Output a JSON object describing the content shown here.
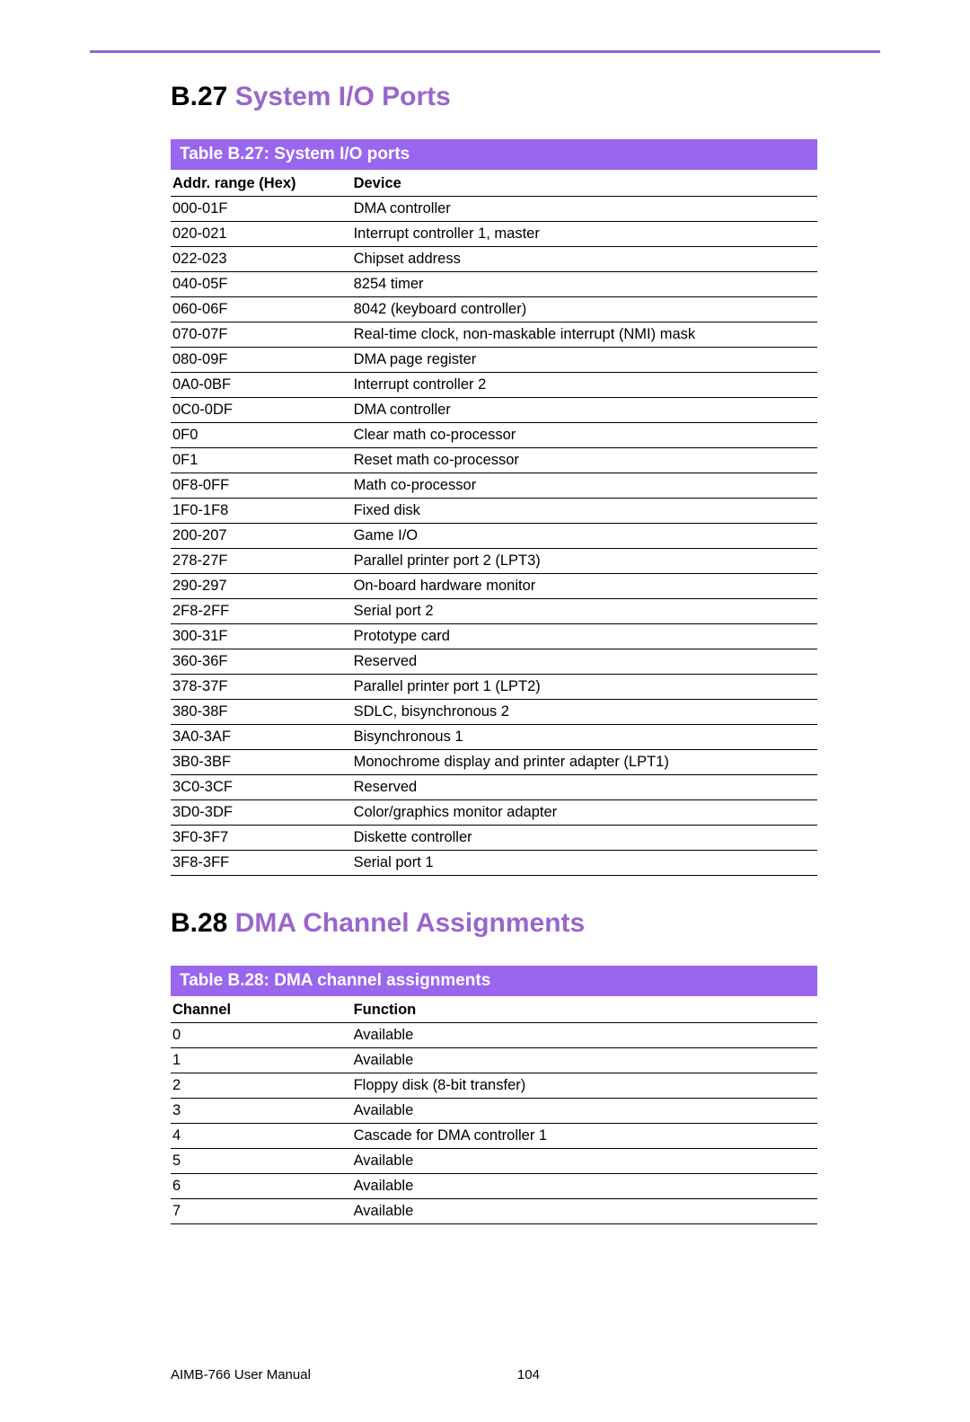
{
  "colors": {
    "accent": "#9966cc",
    "caption_bg": "#9966ee",
    "caption_text": "#ffffff",
    "rule": "#000000",
    "text": "#000000",
    "background": "#ffffff"
  },
  "section1": {
    "number": "B.27",
    "title": "System I/O Ports"
  },
  "table1": {
    "caption": "Table B.27: System I/O ports",
    "columns": [
      "Addr. range (Hex)",
      "Device"
    ],
    "rows": [
      [
        "000-01F",
        "DMA controller"
      ],
      [
        "020-021",
        "Interrupt controller 1, master"
      ],
      [
        "022-023",
        "Chipset address"
      ],
      [
        "040-05F",
        "8254 timer"
      ],
      [
        "060-06F",
        "8042 (keyboard controller)"
      ],
      [
        "070-07F",
        "Real-time clock, non-maskable interrupt (NMI) mask"
      ],
      [
        "080-09F",
        "DMA page register"
      ],
      [
        "0A0-0BF",
        "Interrupt controller 2"
      ],
      [
        "0C0-0DF",
        "DMA controller"
      ],
      [
        "0F0",
        "Clear math co-processor"
      ],
      [
        "0F1",
        "Reset math co-processor"
      ],
      [
        "0F8-0FF",
        "Math co-processor"
      ],
      [
        "1F0-1F8",
        "Fixed disk"
      ],
      [
        "200-207",
        "Game I/O"
      ],
      [
        "278-27F",
        "Parallel printer port 2 (LPT3)"
      ],
      [
        "290-297",
        "On-board hardware monitor"
      ],
      [
        "2F8-2FF",
        "Serial port 2"
      ],
      [
        "300-31F",
        "Prototype card"
      ],
      [
        "360-36F",
        "Reserved"
      ],
      [
        "378-37F",
        "Parallel printer port 1 (LPT2)"
      ],
      [
        "380-38F",
        "SDLC, bisynchronous 2"
      ],
      [
        "3A0-3AF",
        "Bisynchronous 1"
      ],
      [
        "3B0-3BF",
        "Monochrome display and printer adapter (LPT1)"
      ],
      [
        "3C0-3CF",
        "Reserved"
      ],
      [
        "3D0-3DF",
        "Color/graphics monitor adapter"
      ],
      [
        "3F0-3F7",
        "Diskette controller"
      ],
      [
        "3F8-3FF",
        "Serial port 1"
      ]
    ]
  },
  "section2": {
    "number": "B.28",
    "title": "DMA Channel Assignments"
  },
  "table2": {
    "caption": "Table B.28: DMA channel assignments",
    "columns": [
      "Channel",
      "Function"
    ],
    "rows": [
      [
        "0",
        "Available"
      ],
      [
        "1",
        "Available"
      ],
      [
        "2",
        "Floppy disk (8-bit transfer)"
      ],
      [
        "3",
        "Available"
      ],
      [
        "4",
        "Cascade for DMA controller 1"
      ],
      [
        "5",
        "Available"
      ],
      [
        "6",
        "Available"
      ],
      [
        "7",
        "Available"
      ]
    ]
  },
  "footer": {
    "manual": "AIMB-766 User Manual",
    "page": "104"
  }
}
